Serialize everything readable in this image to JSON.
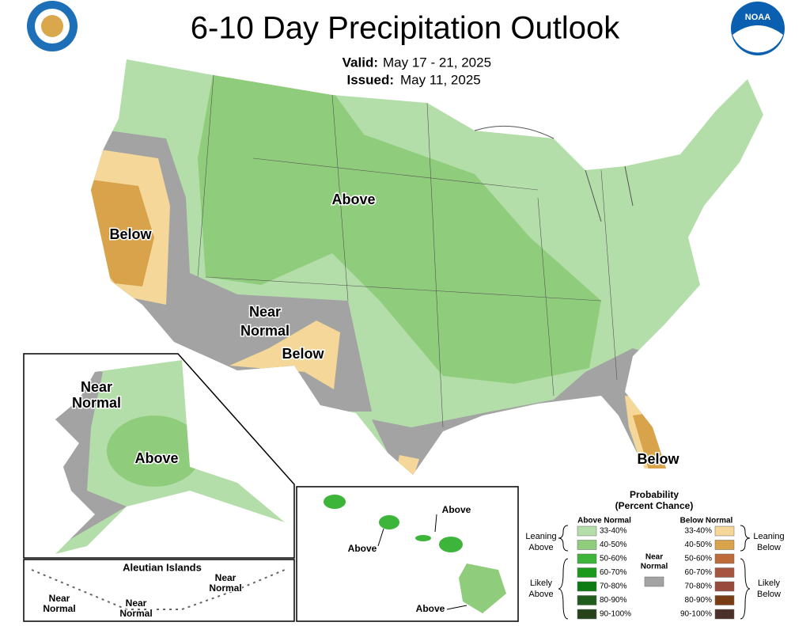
{
  "header": {
    "title": "6-10 Day Precipitation Outlook",
    "valid_label": "Valid:",
    "valid": "May 17 - 21, 2025",
    "issued_label": "Issued:",
    "issued": "May 11, 2025"
  },
  "logos": {
    "noaa": "NOAA"
  },
  "map_labels": {
    "conus_above": [
      "Above"
    ],
    "west_below": [
      "Below"
    ],
    "near_normal": [
      "Near",
      "Normal"
    ],
    "southwest_below": [
      "Below"
    ],
    "florida_below": [
      "Below"
    ],
    "alaska_near_normal": [
      "Near",
      "Normal"
    ],
    "alaska_above": [
      "Above"
    ],
    "aleutian_title": "Aleutian Islands",
    "aleutian_near_normal_1": [
      "Near",
      "Normal"
    ],
    "aleutian_near_normal_2": [
      "Near",
      "Normal"
    ],
    "aleutian_near_normal_3": [
      "Near",
      "Normal"
    ],
    "hawaii_above_1": "Above",
    "hawaii_above_2": "Above",
    "hawaii_above_3": "Above"
  },
  "legend": {
    "title": "Probability",
    "subtitle": "(Percent Chance)",
    "above_header": "Above Normal",
    "below_header": "Below Normal",
    "leaning_above": [
      "Leaning",
      "Above"
    ],
    "likely_above": [
      "Likely",
      "Above"
    ],
    "leaning_below": [
      "Leaning",
      "Below"
    ],
    "likely_below": [
      "Likely",
      "Below"
    ],
    "near_normal": [
      "Near",
      "Normal"
    ],
    "near_normal_color": "#a3a3a3",
    "above": [
      {
        "range": "33-40%",
        "color": "#b3dea9"
      },
      {
        "range": "40-50%",
        "color": "#8fcd7c"
      },
      {
        "range": "50-60%",
        "color": "#3db43a"
      },
      {
        "range": "60-70%",
        "color": "#1c9a1e"
      },
      {
        "range": "70-80%",
        "color": "#0e7a12"
      },
      {
        "range": "80-90%",
        "color": "#205c1b"
      },
      {
        "range": "90-100%",
        "color": "#27431c"
      }
    ],
    "below": [
      {
        "range": "33-40%",
        "color": "#f4d799"
      },
      {
        "range": "40-50%",
        "color": "#d9a34c"
      },
      {
        "range": "50-60%",
        "color": "#bd6b38"
      },
      {
        "range": "60-70%",
        "color": "#a65540"
      },
      {
        "range": "70-80%",
        "color": "#984a3c"
      },
      {
        "range": "80-90%",
        "color": "#7a3c12"
      },
      {
        "range": "90-100%",
        "color": "#4b3129"
      }
    ]
  }
}
